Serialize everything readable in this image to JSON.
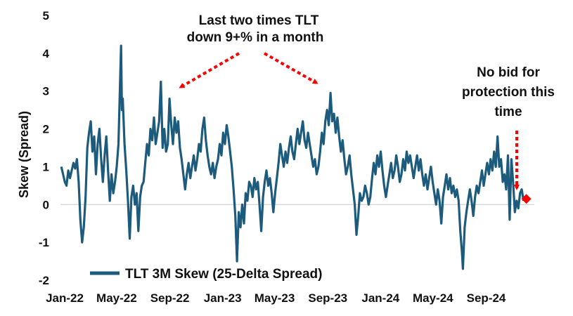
{
  "chart_data": {
    "type": "line",
    "title": "",
    "xlabel": "",
    "ylabel": "Skew (Spread)",
    "ylim": [
      -2,
      5
    ],
    "yticks": [
      -2,
      -1,
      0,
      1,
      2,
      3,
      4,
      5
    ],
    "x_tick_labels": [
      "Jan-22",
      "May-22",
      "Sep-22",
      "Jan-23",
      "May-23",
      "Sep-23",
      "Jan-24",
      "May-24",
      "Sep-24"
    ],
    "grid": false,
    "zero_line": true,
    "legend": {
      "position": "bottom-left"
    },
    "series": [
      {
        "name": "TLT 3M Skew (25-Delta Spread)",
        "color": "#1d5b7c",
        "points": [
          [
            "2022-01-03",
            1.0
          ],
          [
            "2022-01-07",
            0.8
          ],
          [
            "2022-01-11",
            0.6
          ],
          [
            "2022-01-15",
            0.5
          ],
          [
            "2022-01-19",
            0.9
          ],
          [
            "2022-01-23",
            0.7
          ],
          [
            "2022-01-27",
            0.9
          ],
          [
            "2022-01-31",
            1.1
          ],
          [
            "2022-02-04",
            0.95
          ],
          [
            "2022-02-08",
            1.2
          ],
          [
            "2022-02-12",
            0.6
          ],
          [
            "2022-02-16",
            -0.4
          ],
          [
            "2022-02-20",
            -1.0
          ],
          [
            "2022-02-24",
            -0.6
          ],
          [
            "2022-02-28",
            0.2
          ],
          [
            "2022-03-04",
            1.5
          ],
          [
            "2022-03-08",
            1.9
          ],
          [
            "2022-03-12",
            2.2
          ],
          [
            "2022-03-16",
            1.4
          ],
          [
            "2022-03-20",
            1.8
          ],
          [
            "2022-03-24",
            0.8
          ],
          [
            "2022-03-28",
            1.6
          ],
          [
            "2022-04-01",
            2.0
          ],
          [
            "2022-04-05",
            1.2
          ],
          [
            "2022-04-09",
            0.6
          ],
          [
            "2022-04-13",
            1.3
          ],
          [
            "2022-04-17",
            1.8
          ],
          [
            "2022-04-21",
            0.9
          ],
          [
            "2022-04-25",
            0.1
          ],
          [
            "2022-04-29",
            0.8
          ],
          [
            "2022-05-03",
            0.3
          ],
          [
            "2022-05-07",
            0.6
          ],
          [
            "2022-05-11",
            1.0
          ],
          [
            "2022-05-15",
            1.6
          ],
          [
            "2022-05-19",
            3.3
          ],
          [
            "2022-05-21",
            4.2
          ],
          [
            "2022-05-23",
            2.5
          ],
          [
            "2022-05-25",
            2.8
          ],
          [
            "2022-05-29",
            1.6
          ],
          [
            "2022-06-02",
            0.9
          ],
          [
            "2022-06-06",
            0.1
          ],
          [
            "2022-06-10",
            -0.9
          ],
          [
            "2022-06-14",
            0.2
          ],
          [
            "2022-06-18",
            0.5
          ],
          [
            "2022-06-22",
            0.0
          ],
          [
            "2022-06-26",
            0.3
          ],
          [
            "2022-06-30",
            -0.7
          ],
          [
            "2022-07-04",
            0.2
          ],
          [
            "2022-07-08",
            0.5
          ],
          [
            "2022-07-12",
            0.6
          ],
          [
            "2022-07-16",
            1.1
          ],
          [
            "2022-07-20",
            1.6
          ],
          [
            "2022-07-24",
            1.3
          ],
          [
            "2022-07-28",
            2.0
          ],
          [
            "2022-08-01",
            1.7
          ],
          [
            "2022-08-05",
            2.3
          ],
          [
            "2022-08-09",
            1.6
          ],
          [
            "2022-08-13",
            1.9
          ],
          [
            "2022-08-17",
            2.2
          ],
          [
            "2022-08-21",
            3.25
          ],
          [
            "2022-08-25",
            1.5
          ],
          [
            "2022-08-29",
            2.0
          ],
          [
            "2022-09-02",
            1.4
          ],
          [
            "2022-09-06",
            1.6
          ],
          [
            "2022-09-10",
            2.8
          ],
          [
            "2022-09-14",
            2.1
          ],
          [
            "2022-09-18",
            1.6
          ],
          [
            "2022-09-22",
            2.3
          ],
          [
            "2022-09-26",
            1.9
          ],
          [
            "2022-09-30",
            2.2
          ],
          [
            "2022-10-04",
            1.5
          ],
          [
            "2022-10-08",
            1.2
          ],
          [
            "2022-10-12",
            0.8
          ],
          [
            "2022-10-16",
            0.4
          ],
          [
            "2022-10-20",
            0.8
          ],
          [
            "2022-10-24",
            1.1
          ],
          [
            "2022-10-28",
            0.7
          ],
          [
            "2022-11-01",
            1.0
          ],
          [
            "2022-11-05",
            1.3
          ],
          [
            "2022-11-09",
            0.9
          ],
          [
            "2022-11-13",
            1.2
          ],
          [
            "2022-11-17",
            1.6
          ],
          [
            "2022-11-21",
            1.4
          ],
          [
            "2022-11-25",
            2.0
          ],
          [
            "2022-11-29",
            2.3
          ],
          [
            "2022-12-03",
            1.7
          ],
          [
            "2022-12-07",
            1.3
          ],
          [
            "2022-12-11",
            1.0
          ],
          [
            "2022-12-15",
            0.8
          ],
          [
            "2022-12-19",
            1.1
          ],
          [
            "2022-12-23",
            0.7
          ],
          [
            "2022-12-27",
            1.0
          ],
          [
            "2022-12-31",
            1.2
          ],
          [
            "2023-01-04",
            1.6
          ],
          [
            "2023-01-08",
            1.3
          ],
          [
            "2023-01-12",
            1.9
          ],
          [
            "2023-01-16",
            1.6
          ],
          [
            "2023-01-20",
            2.1
          ],
          [
            "2023-01-24",
            1.8
          ],
          [
            "2023-01-28",
            1.4
          ],
          [
            "2023-02-01",
            1.0
          ],
          [
            "2023-02-05",
            0.4
          ],
          [
            "2023-02-09",
            -0.3
          ],
          [
            "2023-02-13",
            -1.5
          ],
          [
            "2023-02-17",
            -0.2
          ],
          [
            "2023-02-21",
            -0.6
          ],
          [
            "2023-02-25",
            0.0
          ],
          [
            "2023-03-01",
            -0.5
          ],
          [
            "2023-03-05",
            0.3
          ],
          [
            "2023-03-09",
            0.1
          ],
          [
            "2023-03-13",
            0.6
          ],
          [
            "2023-03-17",
            0.5
          ],
          [
            "2023-03-21",
            0.2
          ],
          [
            "2023-03-25",
            0.7
          ],
          [
            "2023-03-29",
            0.4
          ],
          [
            "2023-04-02",
            0.6
          ],
          [
            "2023-04-06",
            0.0
          ],
          [
            "2023-04-10",
            -0.7
          ],
          [
            "2023-04-14",
            0.2
          ],
          [
            "2023-04-18",
            0.6
          ],
          [
            "2023-04-22",
            0.9
          ],
          [
            "2023-04-26",
            0.5
          ],
          [
            "2023-04-30",
            0.7
          ],
          [
            "2023-05-04",
            0.3
          ],
          [
            "2023-05-08",
            -0.2
          ],
          [
            "2023-05-12",
            0.3
          ],
          [
            "2023-05-16",
            0.7
          ],
          [
            "2023-05-20",
            1.1
          ],
          [
            "2023-05-24",
            1.6
          ],
          [
            "2023-05-28",
            1.3
          ],
          [
            "2023-06-01",
            1.0
          ],
          [
            "2023-06-05",
            1.4
          ],
          [
            "2023-06-09",
            1.1
          ],
          [
            "2023-06-13",
            1.5
          ],
          [
            "2023-06-17",
            1.8
          ],
          [
            "2023-06-21",
            1.4
          ],
          [
            "2023-06-25",
            1.2
          ],
          [
            "2023-06-29",
            1.6
          ],
          [
            "2023-07-03",
            2.0
          ],
          [
            "2023-07-07",
            1.6
          ],
          [
            "2023-07-11",
            1.9
          ],
          [
            "2023-07-15",
            2.2
          ],
          [
            "2023-07-19",
            1.7
          ],
          [
            "2023-07-23",
            1.5
          ],
          [
            "2023-07-27",
            1.9
          ],
          [
            "2023-07-31",
            1.6
          ],
          [
            "2023-08-04",
            1.3
          ],
          [
            "2023-08-08",
            1.0
          ],
          [
            "2023-08-12",
            1.2
          ],
          [
            "2023-08-16",
            0.8
          ],
          [
            "2023-08-20",
            1.0
          ],
          [
            "2023-08-24",
            1.4
          ],
          [
            "2023-08-28",
            1.9
          ],
          [
            "2023-09-01",
            1.6
          ],
          [
            "2023-09-05",
            2.2
          ],
          [
            "2023-09-09",
            2.5
          ],
          [
            "2023-09-13",
            2.1
          ],
          [
            "2023-09-17",
            2.95
          ],
          [
            "2023-09-21",
            2.2
          ],
          [
            "2023-09-25",
            2.4
          ],
          [
            "2023-09-29",
            1.9
          ],
          [
            "2023-10-03",
            2.3
          ],
          [
            "2023-10-07",
            1.8
          ],
          [
            "2023-10-11",
            1.4
          ],
          [
            "2023-10-15",
            1.7
          ],
          [
            "2023-10-19",
            1.2
          ],
          [
            "2023-10-23",
            0.8
          ],
          [
            "2023-10-27",
            1.0
          ],
          [
            "2023-10-31",
            1.3
          ],
          [
            "2023-11-04",
            0.8
          ],
          [
            "2023-11-08",
            0.4
          ],
          [
            "2023-11-12",
            0.0
          ],
          [
            "2023-11-16",
            -0.8
          ],
          [
            "2023-11-20",
            -0.3
          ],
          [
            "2023-11-24",
            0.3
          ],
          [
            "2023-11-28",
            0.1
          ],
          [
            "2023-12-02",
            0.2
          ],
          [
            "2023-12-06",
            0.5
          ],
          [
            "2023-12-10",
            0.3
          ],
          [
            "2023-12-14",
            0.0
          ],
          [
            "2023-12-18",
            0.2
          ],
          [
            "2023-12-22",
            0.7
          ],
          [
            "2023-12-26",
            1.1
          ],
          [
            "2023-12-30",
            0.8
          ],
          [
            "2024-01-03",
            1.3
          ],
          [
            "2024-01-07",
            1.0
          ],
          [
            "2024-01-11",
            1.4
          ],
          [
            "2024-01-15",
            0.9
          ],
          [
            "2024-01-19",
            0.5
          ],
          [
            "2024-01-23",
            0.2
          ],
          [
            "2024-01-27",
            0.5
          ],
          [
            "2024-01-31",
            0.8
          ],
          [
            "2024-02-04",
            1.1
          ],
          [
            "2024-02-08",
            0.7
          ],
          [
            "2024-02-12",
            0.9
          ],
          [
            "2024-02-16",
            1.3
          ],
          [
            "2024-02-20",
            1.0
          ],
          [
            "2024-02-24",
            0.6
          ],
          [
            "2024-02-28",
            0.8
          ],
          [
            "2024-03-03",
            1.2
          ],
          [
            "2024-03-07",
            0.9
          ],
          [
            "2024-03-11",
            1.4
          ],
          [
            "2024-03-15",
            1.1
          ],
          [
            "2024-03-19",
            1.3
          ],
          [
            "2024-03-23",
            1.0
          ],
          [
            "2024-03-27",
            0.7
          ],
          [
            "2024-03-31",
            1.0
          ],
          [
            "2024-04-04",
            1.3
          ],
          [
            "2024-04-08",
            0.9
          ],
          [
            "2024-04-12",
            1.2
          ],
          [
            "2024-04-16",
            0.8
          ],
          [
            "2024-04-20",
            0.5
          ],
          [
            "2024-04-24",
            0.8
          ],
          [
            "2024-04-28",
            0.4
          ],
          [
            "2024-05-02",
            0.7
          ],
          [
            "2024-05-06",
            1.0
          ],
          [
            "2024-05-10",
            0.6
          ],
          [
            "2024-05-14",
            0.3
          ],
          [
            "2024-05-18",
            0.0
          ],
          [
            "2024-05-22",
            0.4
          ],
          [
            "2024-05-26",
            0.1
          ],
          [
            "2024-05-30",
            -0.5
          ],
          [
            "2024-06-03",
            0.2
          ],
          [
            "2024-06-07",
            0.5
          ],
          [
            "2024-06-11",
            0.8
          ],
          [
            "2024-06-15",
            0.4
          ],
          [
            "2024-06-19",
            0.7
          ],
          [
            "2024-06-23",
            0.3
          ],
          [
            "2024-06-27",
            0.5
          ],
          [
            "2024-07-01",
            0.2
          ],
          [
            "2024-07-05",
            0.4
          ],
          [
            "2024-07-09",
            0.1
          ],
          [
            "2024-07-13",
            -0.7
          ],
          [
            "2024-07-17",
            -1.3
          ],
          [
            "2024-07-19",
            -1.7
          ],
          [
            "2024-07-23",
            -0.6
          ],
          [
            "2024-07-27",
            -0.2
          ],
          [
            "2024-07-31",
            0.1
          ],
          [
            "2024-08-04",
            0.4
          ],
          [
            "2024-08-08",
            0.1
          ],
          [
            "2024-08-12",
            -0.3
          ],
          [
            "2024-08-16",
            0.2
          ],
          [
            "2024-08-20",
            0.5
          ],
          [
            "2024-08-24",
            0.3
          ],
          [
            "2024-08-28",
            0.6
          ],
          [
            "2024-09-01",
            0.9
          ],
          [
            "2024-09-05",
            0.5
          ],
          [
            "2024-09-09",
            0.8
          ],
          [
            "2024-09-13",
            1.1
          ],
          [
            "2024-09-17",
            0.8
          ],
          [
            "2024-09-21",
            1.2
          ],
          [
            "2024-09-25",
            0.9
          ],
          [
            "2024-09-29",
            1.4
          ],
          [
            "2024-10-03",
            1.0
          ],
          [
            "2024-10-07",
            1.8
          ],
          [
            "2024-10-11",
            1.0
          ],
          [
            "2024-10-15",
            1.2
          ],
          [
            "2024-10-19",
            0.6
          ],
          [
            "2024-10-23",
            0.8
          ],
          [
            "2024-10-27",
            0.4
          ],
          [
            "2024-10-31",
            1.3
          ],
          [
            "2024-11-04",
            -0.4
          ],
          [
            "2024-11-08",
            1.2
          ],
          [
            "2024-11-12",
            0.6
          ],
          [
            "2024-11-16",
            -0.2
          ],
          [
            "2024-11-20",
            0.1
          ],
          [
            "2024-11-24",
            -0.1
          ],
          [
            "2024-11-28",
            0.3
          ],
          [
            "2024-12-02",
            0.4
          ],
          [
            "2024-12-06",
            0.1
          ]
        ]
      }
    ],
    "highlight_point": {
      "x": "2024-12-06",
      "y": 0.15,
      "color": "#ff0000"
    },
    "annotations": [
      {
        "id": "tlt-down",
        "lines": [
          "Last two times TLT",
          "down 9+% in a month"
        ]
      },
      {
        "id": "no-bid",
        "lines": [
          "No bid for",
          "protection this",
          "time"
        ]
      }
    ],
    "arrow_color": "#ff0000"
  }
}
